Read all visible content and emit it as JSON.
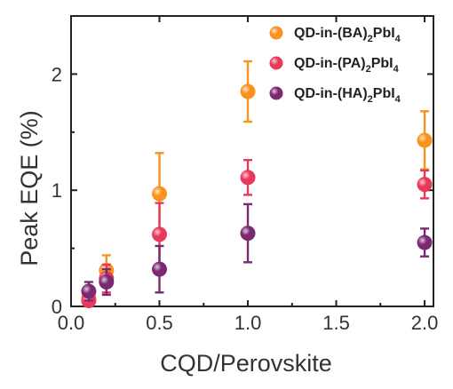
{
  "chart_data": {
    "type": "scatter",
    "xlabel": "CQD/Perovskite",
    "ylabel": "Peak EQE (%)",
    "xlim": [
      0.0,
      2.05
    ],
    "ylim": [
      0,
      2.5
    ],
    "x_ticks": [
      "0.0",
      "0.5",
      "1.0",
      "1.5",
      "2.0"
    ],
    "y_ticks": [
      "0",
      "1",
      "2"
    ],
    "legend_position": "top-right",
    "series": [
      {
        "name": "QD-in-(BA)2PbI4",
        "name_parts": [
          "QD-in-(BA)",
          "2",
          "PbI",
          "4"
        ],
        "color": "#f7931e",
        "points": [
          {
            "x": 0.1,
            "y": 0.07,
            "err_low": 0.04,
            "err_high": 0.04
          },
          {
            "x": 0.2,
            "y": 0.31,
            "err_low": 0.13,
            "err_high": 0.13
          },
          {
            "x": 0.5,
            "y": 0.97,
            "err_low": 0.35,
            "err_high": 0.35
          },
          {
            "x": 1.0,
            "y": 1.85,
            "err_low": 0.26,
            "err_high": 0.26
          },
          {
            "x": 2.0,
            "y": 1.43,
            "err_low": 0.25,
            "err_high": 0.25
          }
        ]
      },
      {
        "name": "QD-in-(PA)2PbI4",
        "name_parts": [
          "QD-in-(PA)",
          "2",
          "PbI",
          "4"
        ],
        "color": "#e8395a",
        "points": [
          {
            "x": 0.1,
            "y": 0.05,
            "err_low": 0.03,
            "err_high": 0.03
          },
          {
            "x": 0.2,
            "y": 0.24,
            "err_low": 0.12,
            "err_high": 0.12
          },
          {
            "x": 0.5,
            "y": 0.62,
            "err_low": 0.27,
            "err_high": 0.27
          },
          {
            "x": 1.0,
            "y": 1.11,
            "err_low": 0.15,
            "err_high": 0.15
          },
          {
            "x": 2.0,
            "y": 1.05,
            "err_low": 0.12,
            "err_high": 0.12
          }
        ]
      },
      {
        "name": "QD-in-(HA)2PbI4",
        "name_parts": [
          "QD-in-(HA)",
          "2",
          "PbI",
          "4"
        ],
        "color": "#7b2a72",
        "points": [
          {
            "x": 0.1,
            "y": 0.13,
            "err_low": 0.08,
            "err_high": 0.08
          },
          {
            "x": 0.2,
            "y": 0.21,
            "err_low": 0.11,
            "err_high": 0.11
          },
          {
            "x": 0.5,
            "y": 0.32,
            "err_low": 0.2,
            "err_high": 0.2
          },
          {
            "x": 1.0,
            "y": 0.63,
            "err_low": 0.25,
            "err_high": 0.25
          },
          {
            "x": 2.0,
            "y": 0.55,
            "err_low": 0.12,
            "err_high": 0.12
          }
        ]
      }
    ]
  }
}
